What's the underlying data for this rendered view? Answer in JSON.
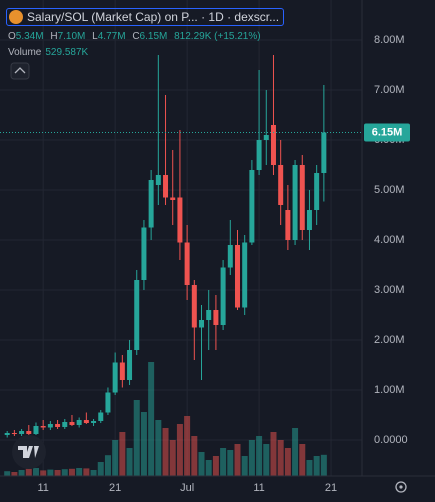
{
  "chart_data": {
    "type": "candlestick",
    "title": "Salary/SOL (Market Cap) on P... · 1D · dexscr...",
    "ohlc_labels": [
      {
        "label": "O",
        "value": "5.34M"
      },
      {
        "label": "H",
        "value": "7.10M"
      },
      {
        "label": "L",
        "value": "4.77M"
      },
      {
        "label": "C",
        "value": "6.15M"
      }
    ],
    "change_label": "812.29K (+15.21%)",
    "volume_title": "Volume",
    "volume_value_label": "529.587K",
    "last_price_label": "6.15M",
    "up_color": "#26a69a",
    "down_color": "#ef5350",
    "grid": true,
    "ylim": [
      -0.72,
      8.8
    ],
    "yticks": [
      {
        "value": 8,
        "label": "8.00M"
      },
      {
        "value": 7,
        "label": "7.00M"
      },
      {
        "value": 6,
        "label": "6.00M"
      },
      {
        "value": 5,
        "label": "5.00M"
      },
      {
        "value": 4,
        "label": "4.00M"
      },
      {
        "value": 3,
        "label": "3.00M"
      },
      {
        "value": 2,
        "label": "2.00M"
      },
      {
        "value": 1,
        "label": "1.00M"
      },
      {
        "value": 0,
        "label": "0.0000"
      }
    ],
    "xlim": [
      -1,
      49.3
    ],
    "xticks": [
      {
        "value": 5,
        "label": "11"
      },
      {
        "value": 15,
        "label": "21"
      },
      {
        "value": 25,
        "label": "Jul"
      },
      {
        "value": 35,
        "label": "11"
      },
      {
        "value": 45,
        "label": "21"
      }
    ],
    "volume_ylim": [
      0,
      3500
    ],
    "open": [
      0.1,
      0.14,
      0.12,
      0.18,
      0.12,
      0.28,
      0.25,
      0.32,
      0.26,
      0.36,
      0.3,
      0.4,
      0.34,
      0.38,
      0.55,
      0.95,
      1.55,
      1.2,
      1.8,
      3.2,
      4.25,
      5.1,
      5.3,
      4.85,
      4.85,
      3.95,
      3.1,
      2.25,
      2.4,
      2.6,
      2.3,
      3.45,
      3.9,
      2.65,
      3.95,
      5.4,
      6.0,
      6.3,
      5.5,
      4.6,
      4.0,
      5.5,
      4.2,
      4.6,
      5.34
    ],
    "high": [
      0.18,
      0.2,
      0.22,
      0.3,
      0.35,
      0.4,
      0.38,
      0.4,
      0.42,
      0.5,
      0.45,
      0.55,
      0.42,
      0.6,
      1.05,
      1.75,
      1.7,
      2.0,
      3.4,
      4.4,
      5.4,
      7.7,
      6.9,
      5.8,
      6.2,
      4.3,
      3.2,
      2.7,
      3.0,
      2.9,
      3.6,
      4.4,
      4.2,
      4.1,
      5.6,
      7.4,
      7.0,
      7.7,
      6.0,
      5.1,
      5.6,
      5.7,
      5.0,
      5.5,
      7.1
    ],
    "low": [
      0.05,
      0.08,
      0.08,
      0.1,
      0.1,
      0.2,
      0.2,
      0.22,
      0.22,
      0.28,
      0.25,
      0.32,
      0.28,
      0.34,
      0.5,
      0.9,
      1.05,
      1.1,
      1.7,
      3.0,
      4.0,
      4.7,
      4.7,
      4.3,
      3.6,
      2.8,
      1.6,
      1.2,
      1.8,
      1.8,
      2.2,
      3.3,
      2.6,
      2.5,
      3.9,
      5.3,
      5.5,
      5.3,
      4.3,
      3.8,
      3.9,
      4.0,
      3.8,
      4.3,
      4.77
    ],
    "close": [
      0.14,
      0.12,
      0.18,
      0.12,
      0.28,
      0.25,
      0.32,
      0.26,
      0.36,
      0.3,
      0.4,
      0.34,
      0.38,
      0.55,
      0.95,
      1.55,
      1.2,
      1.8,
      3.2,
      4.25,
      5.2,
      5.3,
      4.85,
      4.8,
      3.95,
      3.1,
      2.25,
      2.4,
      2.6,
      2.3,
      3.45,
      3.9,
      2.65,
      3.95,
      5.4,
      6.0,
      6.1,
      5.5,
      4.7,
      4.0,
      5.5,
      4.2,
      4.6,
      5.34,
      6.15
    ],
    "volume": [
      120,
      100,
      150,
      180,
      200,
      140,
      160,
      150,
      170,
      180,
      200,
      190,
      150,
      350,
      520,
      900,
      1100,
      700,
      1900,
      1600,
      2850,
      1400,
      1200,
      900,
      1300,
      1500,
      1000,
      600,
      400,
      500,
      700,
      650,
      800,
      500,
      900,
      1000,
      800,
      1100,
      900,
      700,
      1200,
      800,
      400,
      500,
      529.587
    ]
  }
}
